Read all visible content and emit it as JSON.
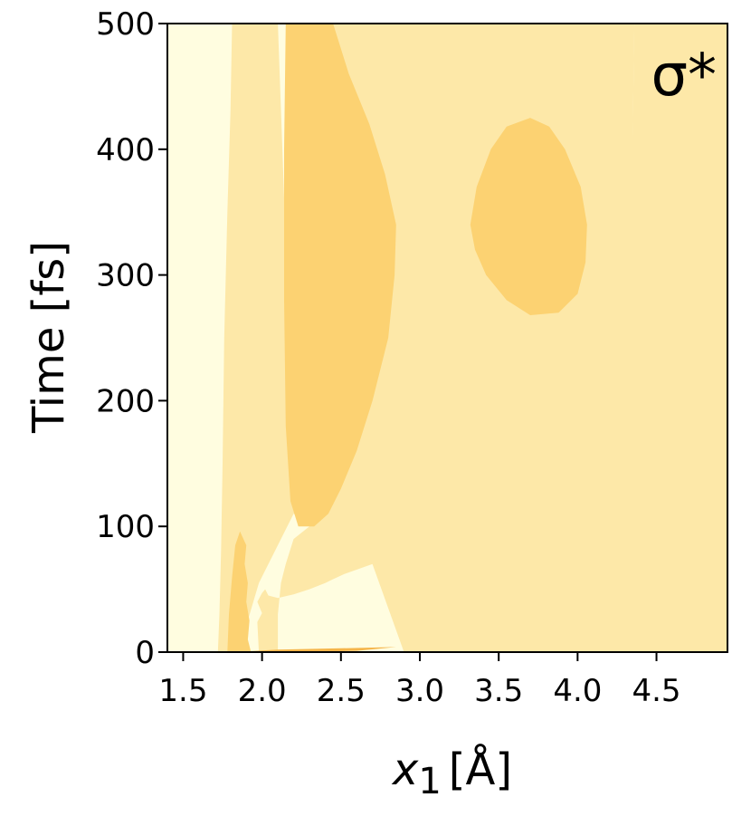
{
  "chart_data": {
    "type": "heatmap",
    "subtype": "filled-contour",
    "annotation": "σ*",
    "xlabel": {
      "main": "x",
      "subscript": "1",
      "unit": "[Å]"
    },
    "ylabel": "Time [fs]",
    "xlim": [
      1.4,
      4.95
    ],
    "ylim": [
      0,
      500
    ],
    "xticks": [
      1.5,
      2.0,
      2.5,
      3.0,
      3.5,
      4.0,
      4.5
    ],
    "xtick_labels": [
      "1.5",
      "2.0",
      "2.5",
      "3.0",
      "3.5",
      "4.0",
      "4.5"
    ],
    "yticks": [
      0,
      100,
      200,
      300,
      400,
      500
    ],
    "ytick_labels": [
      "0",
      "100",
      "200",
      "300",
      "400",
      "500"
    ],
    "grid": false,
    "level_colors": [
      "#fffde0",
      "#fde8a8",
      "#fcd272",
      "#f5b54a"
    ],
    "regions": [
      {
        "level": 1,
        "points": [
          [
            1.72,
            0
          ],
          [
            1.73,
            30
          ],
          [
            1.74,
            80
          ],
          [
            1.75,
            150
          ],
          [
            1.76,
            250
          ],
          [
            1.78,
            350
          ],
          [
            1.8,
            430
          ],
          [
            1.81,
            500
          ],
          [
            2.1,
            500
          ],
          [
            2.2,
            150
          ],
          [
            2.28,
            110
          ],
          [
            2.4,
            95
          ],
          [
            2.7,
            102
          ],
          [
            3.0,
            102
          ],
          [
            3.5,
            106
          ],
          [
            4.0,
            108
          ],
          [
            4.16,
            112
          ],
          [
            4.25,
            160
          ],
          [
            4.32,
            280
          ],
          [
            4.35,
            420
          ],
          [
            4.36,
            500
          ],
          [
            4.95,
            500
          ],
          [
            4.95,
            0
          ],
          [
            2.9,
            0
          ],
          [
            2.6,
            105
          ],
          [
            2.4,
            99
          ],
          [
            2.2,
            110
          ],
          [
            1.98,
            55
          ],
          [
            1.85,
            0
          ]
        ]
      },
      {
        "level": 1,
        "points": [
          [
            1.98,
            0
          ],
          [
            1.97,
            24
          ],
          [
            2.0,
            31
          ],
          [
            1.97,
            40
          ],
          [
            2.0,
            47
          ],
          [
            2.02,
            50
          ],
          [
            2.04,
            45
          ],
          [
            2.1,
            43
          ],
          [
            2.2,
            46
          ],
          [
            2.3,
            50
          ],
          [
            2.4,
            55
          ],
          [
            2.45,
            58
          ],
          [
            2.52,
            62
          ],
          [
            2.7,
            70
          ],
          [
            2.9,
            80
          ],
          [
            3.1,
            87
          ],
          [
            3.3,
            92
          ],
          [
            3.6,
            95
          ],
          [
            3.9,
            97
          ],
          [
            4.14,
            100
          ],
          [
            4.25,
            112
          ],
          [
            4.3,
            200
          ],
          [
            4.34,
            330
          ],
          [
            4.36,
            500
          ],
          [
            2.16,
            500
          ],
          [
            2.18,
            430
          ],
          [
            2.2,
            350
          ],
          [
            2.22,
            260
          ],
          [
            2.25,
            160
          ],
          [
            2.3,
            100
          ],
          [
            2.2,
            90
          ],
          [
            2.15,
            70
          ],
          [
            2.12,
            55
          ],
          [
            2.1,
            30
          ],
          [
            2.1,
            0
          ]
        ]
      },
      {
        "level": 2,
        "points": [
          [
            2.15,
            500
          ],
          [
            2.45,
            500
          ],
          [
            2.55,
            460
          ],
          [
            2.68,
            420
          ],
          [
            2.78,
            380
          ],
          [
            2.85,
            340
          ],
          [
            2.84,
            300
          ],
          [
            2.8,
            250
          ],
          [
            2.7,
            200
          ],
          [
            2.6,
            160
          ],
          [
            2.5,
            130
          ],
          [
            2.42,
            110
          ],
          [
            2.33,
            100
          ],
          [
            2.23,
            100
          ],
          [
            2.18,
            120
          ],
          [
            2.15,
            180
          ],
          [
            2.14,
            280
          ],
          [
            2.14,
            400
          ]
        ]
      },
      {
        "level": 2,
        "points": [
          [
            3.32,
            340
          ],
          [
            3.36,
            370
          ],
          [
            3.45,
            400
          ],
          [
            3.55,
            418
          ],
          [
            3.7,
            425
          ],
          [
            3.82,
            418
          ],
          [
            3.92,
            400
          ],
          [
            4.02,
            370
          ],
          [
            4.06,
            340
          ],
          [
            4.05,
            310
          ],
          [
            4.0,
            285
          ],
          [
            3.88,
            270
          ],
          [
            3.7,
            268
          ],
          [
            3.55,
            280
          ],
          [
            3.42,
            300
          ],
          [
            3.35,
            320
          ]
        ]
      },
      {
        "level": 2,
        "points": [
          [
            1.78,
            0
          ],
          [
            1.79,
            30
          ],
          [
            1.81,
            60
          ],
          [
            1.83,
            85
          ],
          [
            1.86,
            96
          ],
          [
            1.9,
            85
          ],
          [
            1.89,
            70
          ],
          [
            1.91,
            55
          ],
          [
            1.9,
            40
          ],
          [
            1.92,
            25
          ],
          [
            1.91,
            10
          ],
          [
            1.93,
            0
          ]
        ]
      },
      {
        "level": 3,
        "points": [
          [
            1.82,
            0
          ],
          [
            2.1,
            2
          ],
          [
            2.5,
            3
          ],
          [
            2.85,
            4
          ],
          [
            2.6,
            1
          ],
          [
            2.2,
            0
          ]
        ]
      }
    ]
  }
}
